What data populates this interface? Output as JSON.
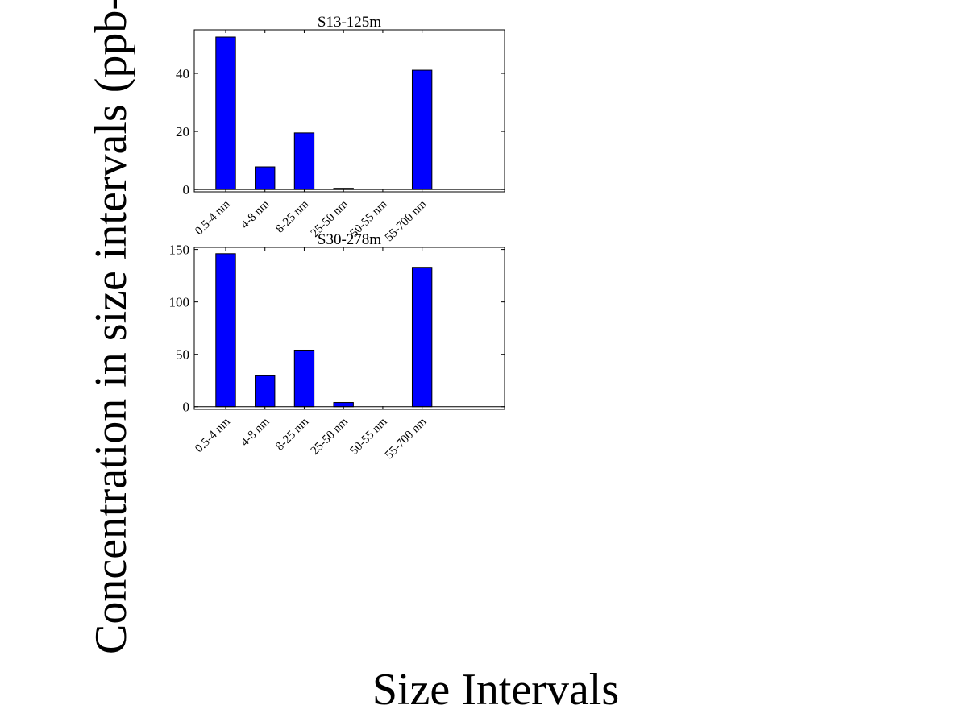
{
  "figure": {
    "ylabel": "Concentration in size intervals (ppb-QS",
    "xlabel": "Size Intervals"
  },
  "colors": {
    "bar_fill": "#0000ff",
    "bar_stroke": "#000000",
    "axes": "#000000",
    "background": "#ffffff"
  },
  "chart_data": [
    {
      "type": "bar",
      "title": "S13-125m",
      "categories": [
        "0.5-4 nm",
        "4-8 nm",
        "8-25 nm",
        "25-50 nm",
        "50-55 nm",
        "55-700 nm"
      ],
      "values": [
        52.5,
        7.8,
        19.5,
        0.4,
        0,
        41.1
      ],
      "ylim": [
        -0.8,
        55
      ],
      "yticks": [
        0,
        20,
        40
      ],
      "xlim": [
        0.2,
        8.1
      ],
      "xlabel": "",
      "ylabel": "",
      "grid": false
    },
    {
      "type": "bar",
      "title": "S30-278m",
      "categories": [
        "0.5-4 nm",
        "4-8 nm",
        "8-25 nm",
        "25-50 nm",
        "50-55 nm",
        "55-700 nm"
      ],
      "values": [
        146,
        29.5,
        54,
        4,
        0,
        133
      ],
      "ylim": [
        -2.5,
        152
      ],
      "yticks": [
        0,
        50,
        100,
        150
      ],
      "xlim": [
        0.2,
        8.1
      ],
      "xlabel": "",
      "ylabel": "",
      "grid": false
    }
  ]
}
